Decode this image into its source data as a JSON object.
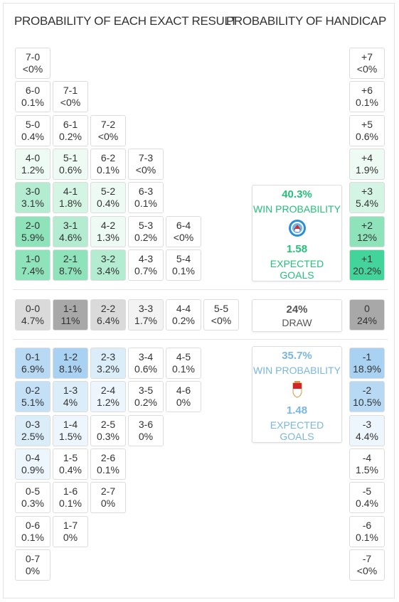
{
  "headers": {
    "exact": "PROBABILITY OF EACH EXACT RESULT",
    "handicap": "PROBABILITY OF HANDICAP"
  },
  "colors": {
    "home_scale": [
      "#ffffff",
      "#eefbf4",
      "#d5f5e4",
      "#b3ecd1",
      "#8ee3bb",
      "#43d49b"
    ],
    "away_scale": [
      "#ffffff",
      "#eef6fd",
      "#dbedf9",
      "#c4e0f6",
      "#b7d9f4",
      "#a9d1f2"
    ],
    "draw_scale": [
      "#ffffff",
      "#f3f3f3",
      "#dadada",
      "#a8a8a8"
    ],
    "home_text": "#24c07a",
    "away_text": "#7ab7de",
    "draw_text": "#555555"
  },
  "exact_home": [
    [
      {
        "score": "7-0",
        "pct": "<0%",
        "shade": 0
      }
    ],
    [
      {
        "score": "6-0",
        "pct": "0.1%",
        "shade": 0
      },
      {
        "score": "7-1",
        "pct": "<0%",
        "shade": 0
      }
    ],
    [
      {
        "score": "5-0",
        "pct": "0.4%",
        "shade": 0
      },
      {
        "score": "6-1",
        "pct": "0.2%",
        "shade": 0
      },
      {
        "score": "7-2",
        "pct": "<0%",
        "shade": 0
      }
    ],
    [
      {
        "score": "4-0",
        "pct": "1.2%",
        "shade": 1
      },
      {
        "score": "5-1",
        "pct": "0.6%",
        "shade": 1
      },
      {
        "score": "6-2",
        "pct": "0.1%",
        "shade": 0
      },
      {
        "score": "7-3",
        "pct": "<0%",
        "shade": 0
      }
    ],
    [
      {
        "score": "3-0",
        "pct": "3.1%",
        "shade": 3
      },
      {
        "score": "4-1",
        "pct": "1.8%",
        "shade": 2
      },
      {
        "score": "5-2",
        "pct": "0.4%",
        "shade": 1
      },
      {
        "score": "6-3",
        "pct": "0.1%",
        "shade": 0
      }
    ],
    [
      {
        "score": "2-0",
        "pct": "5.9%",
        "shade": 4
      },
      {
        "score": "3-1",
        "pct": "4.6%",
        "shade": 3
      },
      {
        "score": "4-2",
        "pct": "1.3%",
        "shade": 1
      },
      {
        "score": "5-3",
        "pct": "0.2%",
        "shade": 0
      },
      {
        "score": "6-4",
        "pct": "<0%",
        "shade": 0
      }
    ],
    [
      {
        "score": "1-0",
        "pct": "7.4%",
        "shade": 4
      },
      {
        "score": "2-1",
        "pct": "8.7%",
        "shade": 4
      },
      {
        "score": "3-2",
        "pct": "3.4%",
        "shade": 3
      },
      {
        "score": "4-3",
        "pct": "0.7%",
        "shade": 0
      },
      {
        "score": "5-4",
        "pct": "0.1%",
        "shade": 0
      }
    ]
  ],
  "exact_draw": [
    {
      "score": "0-0",
      "pct": "4.7%",
      "shade": 2
    },
    {
      "score": "1-1",
      "pct": "11%",
      "shade": 3
    },
    {
      "score": "2-2",
      "pct": "6.4%",
      "shade": 2
    },
    {
      "score": "3-3",
      "pct": "1.7%",
      "shade": 1
    },
    {
      "score": "4-4",
      "pct": "0.2%",
      "shade": 0
    },
    {
      "score": "5-5",
      "pct": "<0%",
      "shade": 0
    }
  ],
  "exact_away": [
    [
      {
        "score": "0-1",
        "pct": "6.9%",
        "shade": 4
      },
      {
        "score": "1-2",
        "pct": "8.1%",
        "shade": 5
      },
      {
        "score": "2-3",
        "pct": "3.2%",
        "shade": 2
      },
      {
        "score": "3-4",
        "pct": "0.6%",
        "shade": 0
      },
      {
        "score": "4-5",
        "pct": "0.1%",
        "shade": 0
      }
    ],
    [
      {
        "score": "0-2",
        "pct": "5.1%",
        "shade": 3
      },
      {
        "score": "1-3",
        "pct": "4%",
        "shade": 2
      },
      {
        "score": "2-4",
        "pct": "1.2%",
        "shade": 1
      },
      {
        "score": "3-5",
        "pct": "0.2%",
        "shade": 0
      },
      {
        "score": "4-6",
        "pct": "0%",
        "shade": 0
      }
    ],
    [
      {
        "score": "0-3",
        "pct": "2.5%",
        "shade": 2
      },
      {
        "score": "1-4",
        "pct": "1.5%",
        "shade": 1
      },
      {
        "score": "2-5",
        "pct": "0.3%",
        "shade": 0
      },
      {
        "score": "3-6",
        "pct": "0%",
        "shade": 0
      }
    ],
    [
      {
        "score": "0-4",
        "pct": "0.9%",
        "shade": 1
      },
      {
        "score": "1-5",
        "pct": "0.4%",
        "shade": 0
      },
      {
        "score": "2-6",
        "pct": "0.1%",
        "shade": 0
      }
    ],
    [
      {
        "score": "0-5",
        "pct": "0.3%",
        "shade": 0
      },
      {
        "score": "1-6",
        "pct": "0.1%",
        "shade": 0
      },
      {
        "score": "2-7",
        "pct": "0%",
        "shade": 0
      }
    ],
    [
      {
        "score": "0-6",
        "pct": "0.1%",
        "shade": 0
      },
      {
        "score": "1-7",
        "pct": "0%",
        "shade": 0
      }
    ],
    [
      {
        "score": "0-7",
        "pct": "0%",
        "shade": 0
      }
    ]
  ],
  "handicap_home": [
    {
      "label": "+7",
      "pct": "<0%",
      "shade": 0
    },
    {
      "label": "+6",
      "pct": "0.1%",
      "shade": 0
    },
    {
      "label": "+5",
      "pct": "0.6%",
      "shade": 0
    },
    {
      "label": "+4",
      "pct": "1.9%",
      "shade": 1
    },
    {
      "label": "+3",
      "pct": "5.4%",
      "shade": 2
    },
    {
      "label": "+2",
      "pct": "12%",
      "shade": 4
    },
    {
      "label": "+1",
      "pct": "20.2%",
      "shade": 5
    }
  ],
  "handicap_draw": {
    "label": "0",
    "pct": "24%",
    "shade": 3
  },
  "handicap_away": [
    {
      "label": "-1",
      "pct": "18.9%",
      "shade": 5
    },
    {
      "label": "-2",
      "pct": "10.5%",
      "shade": 4
    },
    {
      "label": "-3",
      "pct": "4.4%",
      "shade": 1
    },
    {
      "label": "-4",
      "pct": "1.5%",
      "shade": 0
    },
    {
      "label": "-5",
      "pct": "0.4%",
      "shade": 0
    },
    {
      "label": "-6",
      "pct": "0.1%",
      "shade": 0
    },
    {
      "label": "-7",
      "pct": "<0%",
      "shade": 0
    }
  ],
  "home_card": {
    "win_pct": "40.3%",
    "win_label": "WIN PROBABILITY",
    "crest_icon": "strasbourg-crest-icon",
    "xg": "1.58",
    "xg_label": "EXPECTED GOALS"
  },
  "draw_card": {
    "pct": "24%",
    "label": "DRAW"
  },
  "away_card": {
    "win_pct": "35.7%",
    "win_label": "WIN PROBABILITY",
    "crest_icon": "monaco-crest-icon",
    "xg": "1.48",
    "xg_label": "EXPECTED GOALS"
  }
}
